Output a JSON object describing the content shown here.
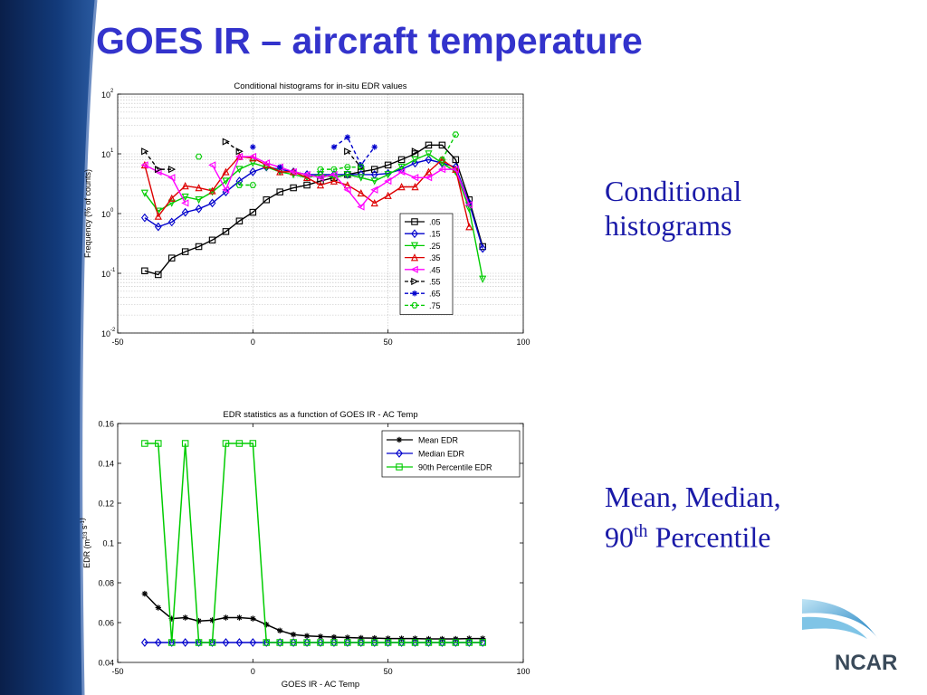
{
  "slide": {
    "title": "GOES IR – aircraft temperature",
    "caption1": [
      "Conditional",
      "histograms"
    ],
    "caption2": {
      "line1": "Mean, Median,",
      "line2_pre": "90",
      "line2_sup": "th",
      "line2_post": " Percentile"
    },
    "logo_text": "NCAR"
  },
  "colors": {
    "title": "#3333cc",
    "caption": "#1a1aa8",
    "sidebar": "#0d2a5e"
  },
  "chart_data": [
    {
      "type": "line",
      "title": "Conditional histograms for in-situ EDR values",
      "xlabel": "",
      "ylabel": "Frequency (% of counts)",
      "yscale": "log",
      "xlim": [
        -50,
        100
      ],
      "ylim": [
        0.01,
        100
      ],
      "xticks": [
        "-50",
        "0",
        "50",
        "100"
      ],
      "grid": true,
      "legend": "right-middle",
      "series": [
        {
          "name": ".05",
          "color": "#000000",
          "dash": "solid",
          "marker": "square",
          "points": [
            [
              -40,
              0.11
            ],
            [
              -35,
              0.095
            ],
            [
              -30,
              0.18
            ],
            [
              -25,
              0.23
            ],
            [
              -20,
              0.28
            ],
            [
              -15,
              0.36
            ],
            [
              -10,
              0.5
            ],
            [
              -5,
              0.75
            ],
            [
              0,
              1.05
            ],
            [
              5,
              1.7
            ],
            [
              10,
              2.3
            ],
            [
              15,
              2.7
            ],
            [
              20,
              3
            ],
            [
              25,
              3.5
            ],
            [
              30,
              4
            ],
            [
              35,
              4.5
            ],
            [
              40,
              5
            ],
            [
              45,
              5.5
            ],
            [
              50,
              6.5
            ],
            [
              55,
              8
            ],
            [
              60,
              10
            ],
            [
              65,
              14
            ],
            [
              70,
              14
            ],
            [
              75,
              8
            ],
            [
              80,
              1.7
            ],
            [
              85,
              0.28
            ]
          ]
        },
        {
          "name": ".15",
          "color": "#0000cc",
          "dash": "solid",
          "marker": "diamond",
          "points": [
            [
              -40,
              0.85
            ],
            [
              -35,
              0.6
            ],
            [
              -30,
              0.72
            ],
            [
              -25,
              1.05
            ],
            [
              -20,
              1.2
            ],
            [
              -15,
              1.5
            ],
            [
              -10,
              2.3
            ],
            [
              -5,
              3.5
            ],
            [
              0,
              5
            ],
            [
              5,
              6
            ],
            [
              10,
              5.5
            ],
            [
              15,
              5
            ],
            [
              20,
              4.5
            ],
            [
              25,
              4.5
            ],
            [
              30,
              4.5
            ],
            [
              35,
              4.5
            ],
            [
              40,
              4.5
            ],
            [
              45,
              4.5
            ],
            [
              50,
              4.7
            ],
            [
              55,
              5.5
            ],
            [
              60,
              7
            ],
            [
              65,
              8
            ],
            [
              70,
              7
            ],
            [
              75,
              6
            ],
            [
              80,
              1.5
            ],
            [
              85,
              0.26
            ]
          ]
        },
        {
          "name": ".25",
          "color": "#00cc00",
          "dash": "solid",
          "marker": "triangle-down",
          "points": [
            [
              -40,
              2.2
            ],
            [
              -35,
              1.1
            ],
            [
              -30,
              1.5
            ],
            [
              -25,
              1.9
            ],
            [
              -20,
              1.7
            ],
            [
              -15,
              2.3
            ],
            [
              -10,
              3.5
            ],
            [
              -5,
              5.5
            ],
            [
              0,
              7
            ],
            [
              5,
              6
            ],
            [
              10,
              5
            ],
            [
              15,
              4.5
            ],
            [
              20,
              4
            ],
            [
              25,
              4.5
            ],
            [
              30,
              4
            ],
            [
              35,
              4.5
            ],
            [
              40,
              4
            ],
            [
              45,
              3.5
            ],
            [
              50,
              4.5
            ],
            [
              55,
              6
            ],
            [
              60,
              8
            ],
            [
              65,
              10
            ],
            [
              70,
              7
            ],
            [
              75,
              5
            ],
            [
              80,
              1.2
            ],
            [
              85,
              0.08
            ]
          ]
        },
        {
          "name": ".35",
          "color": "#dd0000",
          "dash": "solid",
          "marker": "triangle-up",
          "points": [
            [
              -40,
              6.5
            ],
            [
              -35,
              0.9
            ],
            [
              -30,
              1.8
            ],
            [
              -25,
              2.9
            ],
            [
              -20,
              2.7
            ],
            [
              -15,
              2.4
            ],
            [
              -10,
              5
            ],
            [
              -5,
              9
            ],
            [
              0,
              8.5
            ],
            [
              5,
              6.5
            ],
            [
              10,
              5
            ],
            [
              15,
              5
            ],
            [
              20,
              4
            ],
            [
              25,
              3
            ],
            [
              30,
              3.5
            ],
            [
              35,
              3
            ],
            [
              40,
              2.2
            ],
            [
              45,
              1.5
            ],
            [
              50,
              2
            ],
            [
              55,
              2.8
            ],
            [
              60,
              2.8
            ],
            [
              65,
              5
            ],
            [
              70,
              8
            ],
            [
              75,
              5.5
            ],
            [
              80,
              0.6
            ]
          ]
        },
        {
          "name": ".45",
          "color": "#ff00ff",
          "dash": "solid",
          "marker": "triangle-left",
          "points": [
            [
              -40,
              6.5
            ],
            [
              -35,
              5
            ],
            [
              -30,
              4
            ],
            [
              -25,
              1.5
            ],
            [
              -20,
              null
            ],
            [
              -15,
              6.5
            ],
            [
              -10,
              2.5
            ],
            [
              -5,
              9
            ],
            [
              0,
              9
            ],
            [
              5,
              7
            ],
            [
              10,
              6
            ],
            [
              15,
              5
            ],
            [
              20,
              4.5
            ],
            [
              25,
              4
            ],
            [
              30,
              4.5
            ],
            [
              35,
              2.5
            ],
            [
              40,
              1.3
            ],
            [
              45,
              2.5
            ],
            [
              50,
              3.5
            ],
            [
              55,
              5
            ],
            [
              60,
              4
            ],
            [
              65,
              4
            ],
            [
              70,
              5.5
            ],
            [
              75,
              5.5
            ],
            [
              80,
              1.4
            ]
          ]
        },
        {
          "name": ".55",
          "color": "#000000",
          "dash": "dashed",
          "marker": "triangle-right",
          "points": [
            [
              -40,
              11
            ],
            [
              -35,
              5.5
            ],
            [
              -30,
              5.5
            ],
            [
              -25,
              null
            ],
            [
              -20,
              null
            ],
            [
              -15,
              null
            ],
            [
              -10,
              16
            ],
            [
              -5,
              11
            ],
            [
              0,
              null
            ],
            [
              5,
              null
            ],
            [
              10,
              null
            ],
            [
              15,
              null
            ],
            [
              20,
              null
            ],
            [
              25,
              null
            ],
            [
              30,
              null
            ],
            [
              35,
              11
            ],
            [
              40,
              6
            ],
            [
              45,
              null
            ],
            [
              50,
              null
            ],
            [
              55,
              null
            ],
            [
              60,
              11
            ],
            [
              65,
              null
            ],
            [
              70,
              null
            ],
            [
              75,
              null
            ]
          ]
        },
        {
          "name": ".65",
          "color": "#0000cc",
          "dash": "dashed",
          "marker": "star",
          "points": [
            [
              0,
              13
            ],
            [
              5,
              null
            ],
            [
              10,
              6
            ],
            [
              15,
              null
            ],
            [
              20,
              null
            ],
            [
              25,
              null
            ],
            [
              30,
              13
            ],
            [
              35,
              19
            ],
            [
              40,
              6.5
            ],
            [
              45,
              13
            ]
          ]
        },
        {
          "name": ".75",
          "color": "#00cc00",
          "dash": "dashed",
          "marker": "hexagon",
          "points": [
            [
              -20,
              9
            ],
            [
              -15,
              null
            ],
            [
              -10,
              null
            ],
            [
              -5,
              3
            ],
            [
              0,
              3
            ],
            [
              5,
              null
            ],
            [
              10,
              null
            ],
            [
              15,
              null
            ],
            [
              20,
              null
            ],
            [
              25,
              5.5
            ],
            [
              30,
              5.5
            ],
            [
              35,
              6
            ],
            [
              40,
              6
            ],
            [
              45,
              null
            ],
            [
              50,
              null
            ],
            [
              55,
              null
            ],
            [
              60,
              null
            ],
            [
              65,
              null
            ],
            [
              70,
              8
            ],
            [
              75,
              21
            ]
          ]
        }
      ]
    },
    {
      "type": "line",
      "title": "EDR statistics as a function of GOES IR - AC Temp",
      "xlabel": "GOES IR - AC Temp",
      "ylabel_base": "EDR (m",
      "ylabel_sup": "2/3",
      "ylabel_mid": " s",
      "ylabel_sup2": "-1",
      "ylabel_end": ")",
      "xlim": [
        -50,
        100
      ],
      "ylim": [
        0.04,
        0.16
      ],
      "xticks": [
        "-50",
        "0",
        "50",
        "100"
      ],
      "yticks": [
        "0.04",
        "0.06",
        "0.08",
        "0.1",
        "0.12",
        "0.14",
        "0.16"
      ],
      "grid": false,
      "legend": "top-right",
      "x": [
        -40,
        -35,
        -30,
        -25,
        -20,
        -15,
        -10,
        -5,
        0,
        5,
        10,
        15,
        20,
        25,
        30,
        35,
        40,
        45,
        50,
        55,
        60,
        65,
        70,
        75,
        80,
        85
      ],
      "series": [
        {
          "name": "Mean EDR",
          "color": "#000000",
          "marker": "asterisk",
          "values": [
            0.0745,
            0.0675,
            0.062,
            0.0625,
            0.0608,
            0.0612,
            0.0625,
            0.0625,
            0.062,
            0.059,
            0.056,
            0.054,
            0.0533,
            0.053,
            0.0527,
            0.0525,
            0.0523,
            0.0522,
            0.052,
            0.052,
            0.052,
            0.0518,
            0.0518,
            0.0518,
            0.052,
            0.052
          ]
        },
        {
          "name": "Median EDR",
          "color": "#0000cc",
          "marker": "diamond",
          "values": [
            0.05,
            0.05,
            0.05,
            0.05,
            0.05,
            0.05,
            0.05,
            0.05,
            0.05,
            0.05,
            0.05,
            0.05,
            0.05,
            0.05,
            0.05,
            0.05,
            0.05,
            0.05,
            0.05,
            0.05,
            0.05,
            0.05,
            0.05,
            0.05,
            0.05,
            0.05
          ]
        },
        {
          "name": "90th Percentile EDR",
          "color": "#00cc00",
          "marker": "square",
          "values": [
            0.15,
            0.15,
            0.05,
            0.15,
            0.05,
            0.05,
            0.15,
            0.15,
            0.15,
            0.05,
            0.05,
            0.05,
            0.05,
            0.05,
            0.05,
            0.05,
            0.05,
            0.05,
            0.05,
            0.05,
            0.05,
            0.05,
            0.05,
            0.05,
            0.05,
            0.05
          ]
        }
      ]
    }
  ]
}
